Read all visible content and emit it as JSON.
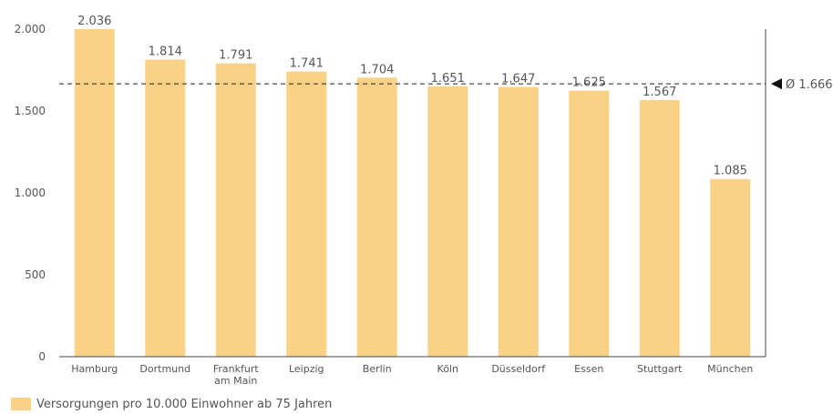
{
  "chart_data": {
    "type": "bar",
    "categories": [
      "Hamburg",
      "Dortmund",
      "Frankfurt\nam Main",
      "Leipzig",
      "Berlin",
      "Köln",
      "Düsseldorf",
      "Essen",
      "Stuttgart",
      "München"
    ],
    "values": [
      2036,
      1814,
      1791,
      1741,
      1704,
      1651,
      1647,
      1625,
      1567,
      1085
    ],
    "value_labels": [
      "2.036",
      "1.814",
      "1.791",
      "1.741",
      "1.704",
      "1.651",
      "1.647",
      "1.625",
      "1.567",
      "1.085"
    ],
    "series": [
      {
        "name": "Versorgungen pro 10.000 Einwohner ab 75 Jahren",
        "values": [
          2036,
          1814,
          1791,
          1741,
          1704,
          1651,
          1647,
          1625,
          1567,
          1085
        ]
      }
    ],
    "ylim": [
      0,
      2000
    ],
    "yticks": [
      0,
      500,
      1000,
      1500,
      2000
    ],
    "ytick_labels": [
      "0",
      "500",
      "1.000",
      "1.500",
      "2.000"
    ],
    "average": {
      "value": 1666,
      "label": "Ø 1.666",
      "style": "dashed"
    },
    "legend_position": "bottom-left",
    "grid": false,
    "title": "",
    "xlabel": "",
    "ylabel": ""
  },
  "colors": {
    "bar": "#fad287",
    "axis": "#444444",
    "text": "#555555"
  }
}
